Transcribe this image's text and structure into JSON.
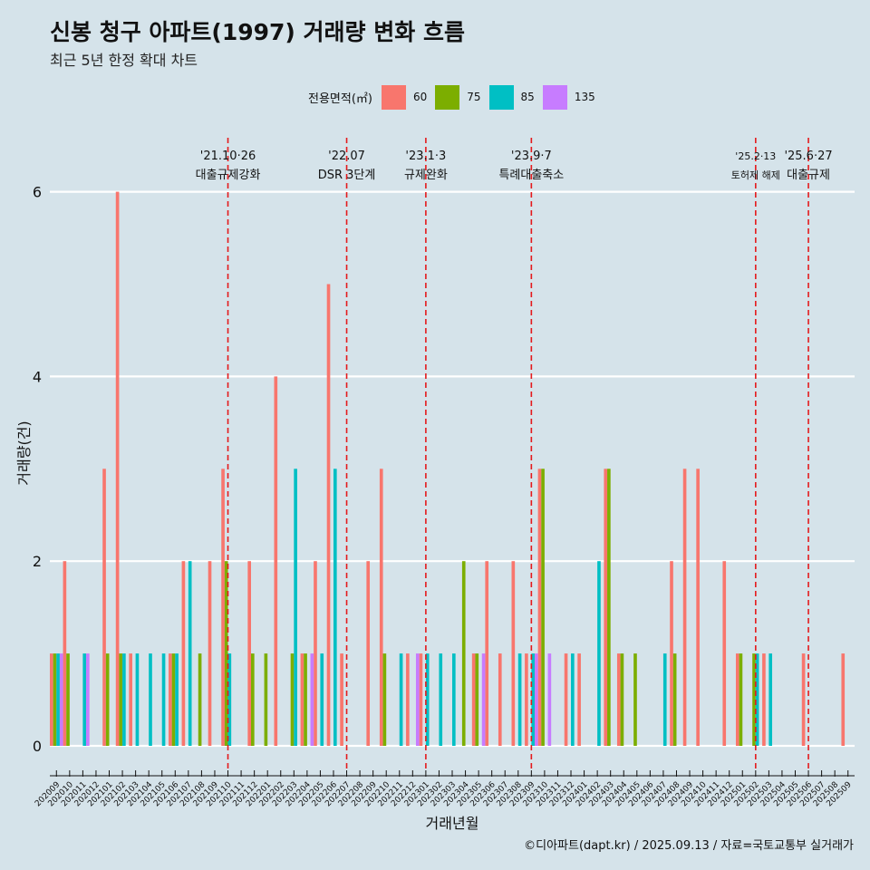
{
  "title": "신봉 청구 아파트(1997) 거래량 변화 흐름",
  "subtitle": "최근 5년 한정 확대 차트",
  "caption": "©디아파트(dapt.kr) / 2025.09.13 / 자료=국토교통부 실거래가",
  "legend": {
    "title": "전용면적(㎡)",
    "items": [
      {
        "label": "60",
        "color": "#f8766d"
      },
      {
        "label": "75",
        "color": "#7cae00"
      },
      {
        "label": "85",
        "color": "#00bfc4"
      },
      {
        "label": "135",
        "color": "#c77cff"
      }
    ]
  },
  "chart_data": {
    "type": "bar",
    "xlabel": "거래년월",
    "ylabel": "거래량(건)",
    "ylim": [
      0,
      6.5
    ],
    "yticks": [
      0,
      2,
      4,
      6
    ],
    "grid": true,
    "legend_position": "top",
    "categories": [
      "202009",
      "202010",
      "202011",
      "202012",
      "202101",
      "202102",
      "202103",
      "202104",
      "202105",
      "202106",
      "202107",
      "202108",
      "202109",
      "202110",
      "202111",
      "202112",
      "202201",
      "202202",
      "202203",
      "202204",
      "202205",
      "202206",
      "202207",
      "202208",
      "202209",
      "202210",
      "202211",
      "202212",
      "202301",
      "202302",
      "202303",
      "202304",
      "202305",
      "202306",
      "202307",
      "202308",
      "202309",
      "202310",
      "202311",
      "202312",
      "202401",
      "202402",
      "202403",
      "202404",
      "202405",
      "202406",
      "202407",
      "202408",
      "202409",
      "202410",
      "202411",
      "202412",
      "202501",
      "202502",
      "202503",
      "202504",
      "202505",
      "202506",
      "202507",
      "202508",
      "202509"
    ],
    "series": [
      {
        "name": "60",
        "color": "#f8766d",
        "values": [
          1,
          2,
          0,
          0,
          3,
          6,
          1,
          0,
          0,
          1,
          2,
          0,
          2,
          3,
          0,
          2,
          0,
          4,
          0,
          1,
          2,
          5,
          1,
          0,
          2,
          3,
          0,
          1,
          1,
          0,
          0,
          0,
          1,
          2,
          1,
          2,
          1,
          3,
          0,
          1,
          1,
          0,
          3,
          1,
          0,
          0,
          0,
          2,
          3,
          3,
          0,
          2,
          1,
          0,
          1,
          0,
          0,
          1,
          0,
          0,
          1
        ]
      },
      {
        "name": "75",
        "color": "#7cae00",
        "values": [
          1,
          1,
          0,
          0,
          1,
          1,
          0,
          0,
          0,
          1,
          0,
          1,
          0,
          2,
          0,
          1,
          1,
          0,
          1,
          1,
          0,
          0,
          0,
          0,
          0,
          1,
          0,
          0,
          0,
          0,
          0,
          2,
          1,
          0,
          0,
          0,
          0,
          3,
          0,
          0,
          0,
          0,
          3,
          1,
          1,
          0,
          0,
          1,
          0,
          0,
          0,
          0,
          1,
          1,
          0,
          0,
          0,
          0,
          0,
          0,
          0
        ]
      },
      {
        "name": "85",
        "color": "#00bfc4",
        "values": [
          1,
          0,
          1,
          0,
          0,
          1,
          1,
          1,
          1,
          1,
          2,
          0,
          0,
          1,
          0,
          0,
          0,
          0,
          3,
          0,
          1,
          3,
          0,
          0,
          0,
          0,
          1,
          0,
          1,
          1,
          1,
          0,
          0,
          0,
          0,
          1,
          1,
          0,
          0,
          1,
          0,
          2,
          0,
          0,
          0,
          0,
          1,
          0,
          0,
          0,
          0,
          0,
          0,
          1,
          1,
          0,
          0,
          0,
          0,
          0,
          0
        ]
      },
      {
        "name": "135",
        "color": "#c77cff",
        "values": [
          1,
          0,
          1,
          0,
          0,
          0,
          0,
          0,
          0,
          0,
          0,
          0,
          0,
          0,
          0,
          0,
          0,
          0,
          0,
          1,
          0,
          0,
          0,
          0,
          0,
          0,
          0,
          1,
          0,
          0,
          0,
          0,
          1,
          0,
          0,
          0,
          1,
          1,
          0,
          0,
          0,
          0,
          0,
          0,
          0,
          0,
          0,
          0,
          0,
          0,
          0,
          0,
          0,
          0,
          0,
          0,
          0,
          0,
          0,
          0,
          0
        ]
      }
    ],
    "annotations": [
      {
        "at": "202110",
        "date": "'21.10·26",
        "label": "대출규제강화",
        "small": false
      },
      {
        "at": "202207",
        "date": "'22.07",
        "label": "DSR 3단계",
        "small": false
      },
      {
        "at": "202301",
        "date": "'23.1·3",
        "label": "규제완화",
        "small": false
      },
      {
        "at": "202309",
        "date": "'23.9·7",
        "label": "특례대출축소",
        "small": false
      },
      {
        "at": "202502",
        "date": "'25.2·13",
        "label": "토허제 해제",
        "small": true
      },
      {
        "at": "202506",
        "date": "'25.6·27",
        "label": "대출규제",
        "small": false
      }
    ]
  }
}
